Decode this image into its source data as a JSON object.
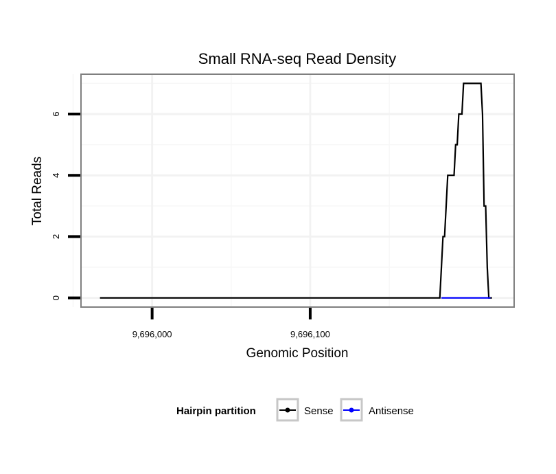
{
  "chart_data": {
    "type": "line",
    "title": "Small RNA-seq Read Density",
    "xlabel": "Genomic Position",
    "ylabel": "Total Reads",
    "xlim": [
      9695955,
      9696229
    ],
    "ylim": [
      -0.3,
      7.3
    ],
    "xticks": [
      {
        "value": 9696000,
        "label": "9,696,000"
      },
      {
        "value": 9696100,
        "label": "9,696,100"
      }
    ],
    "yticks": [
      {
        "value": 0,
        "label": "0"
      },
      {
        "value": 2,
        "label": "2"
      },
      {
        "value": 4,
        "label": "4"
      },
      {
        "value": 6,
        "label": "6"
      }
    ],
    "minor_x_gridlines": [
      9695950,
      9696050,
      9696150
    ],
    "minor_y_gridlines": [
      1,
      3,
      5,
      7
    ],
    "grid": true,
    "legend": {
      "title": "Hairpin partition",
      "position": "bottom"
    },
    "series": [
      {
        "name": "Sense",
        "color": "#000000",
        "points": [
          [
            9695967,
            0
          ],
          [
            9696182,
            0
          ],
          [
            9696184,
            2
          ],
          [
            9696185,
            2
          ],
          [
            9696187,
            4
          ],
          [
            9696191,
            4
          ],
          [
            9696192,
            5
          ],
          [
            9696193,
            5
          ],
          [
            9696194,
            6
          ],
          [
            9696196,
            6
          ],
          [
            9696197,
            7
          ],
          [
            9696208,
            7
          ],
          [
            9696209,
            6
          ],
          [
            9696210,
            3
          ],
          [
            9696211,
            3
          ],
          [
            9696212,
            1
          ],
          [
            9696213,
            0
          ],
          [
            9696215,
            0
          ]
        ]
      },
      {
        "name": "Antisense",
        "color": "#0000ff",
        "points": [
          [
            9696183,
            0
          ],
          [
            9696214,
            0
          ]
        ]
      }
    ]
  }
}
